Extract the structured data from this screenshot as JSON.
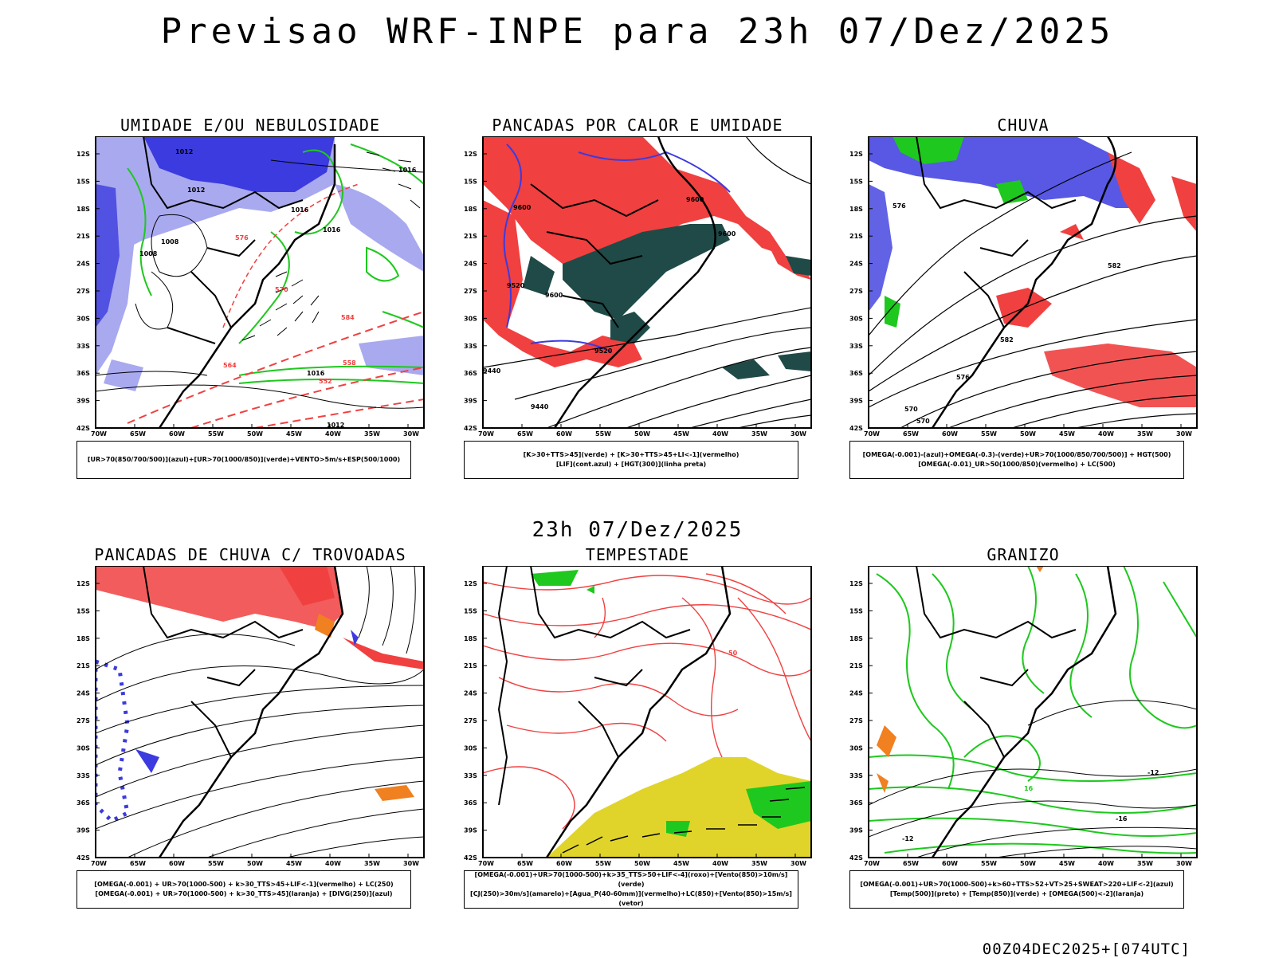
{
  "title": "Previsao WRF-INPE  para 23h 07/Dez/2025",
  "subtitle": "23h 07/Dez/2025",
  "footer": "00Z04DEC2025+[074UTC]",
  "axes": {
    "lat_labels": [
      "12S",
      "15S",
      "18S",
      "21S",
      "24S",
      "27S",
      "30S",
      "33S",
      "36S",
      "39S",
      "42S"
    ],
    "lon_labels": [
      "70W",
      "65W",
      "60W",
      "55W",
      "50W",
      "45W",
      "40W",
      "35W",
      "30W"
    ]
  },
  "panels": [
    {
      "title": "UMIDADE E/OU NEBULOSIDADE",
      "legend": [
        "[UR>70(850/700/500)](azul)+[UR>70(1000/850)](verde)+VENTO>5m/s+ESP(500/1000)"
      ],
      "contour_labels": [
        "1012",
        "1008",
        "1012",
        "1016",
        "1016",
        "1016",
        "1016",
        "1012",
        "1008",
        "584",
        "576",
        "570",
        "564",
        "558",
        "552"
      ]
    },
    {
      "title": "PANCADAS POR CALOR E UMIDADE",
      "legend": [
        "[K>30+TTS>45](verde) + [K>30+TTS>45+LI<-1](vermelho)",
        "[LIF](cont.azul) + [HGT(300)](linha preta)"
      ],
      "contour_labels": [
        "9600",
        "9600",
        "9600",
        "9520",
        "9600",
        "9520",
        "9440",
        "9440"
      ]
    },
    {
      "title": "CHUVA",
      "legend": [
        "[OMEGA(-0.001)-(azul)+OMEGA(-0.3)-(verde)+UR>70(1000/850/700/500)] + HGT(500)",
        "[OMEGA(-0.01)_UR>50(1000/850)(vermelho) + LC(500)"
      ],
      "contour_labels": [
        "582",
        "582",
        "576",
        "570",
        "576",
        "570"
      ]
    },
    {
      "title": "PANCADAS DE CHUVA C/ TROVOADAS",
      "legend": [
        "[OMEGA(-0.001) + UR>70(1000-500) + k>30_TTS>45+LIF<-1](vermelho) + LC(250)",
        "[OMEGA(-0.001) + UR>70(1000-500) + k>30_TTS>45](laranja) + [DIVG(250)](azul)"
      ],
      "contour_labels": []
    },
    {
      "title": "TEMPESTADE",
      "legend": [
        "[OMEGA(-0.001)+UR>70(1000-500)+k>35_TTS>50+LIF<-4](roxo)+[Vento(850)>10m/s](verde)",
        "[CJ(250)>30m/s](amarelo)+[Agua_P(40-60mm)](vermelho)+LC(850)+[Vento(850)>15m/s](vetor)"
      ],
      "contour_labels": [
        "50"
      ]
    },
    {
      "title": "GRANIZO",
      "legend": [
        "[OMEGA(-0.001)+UR>70(1000-500)+k>60+TTS>52+VT>25+SWEAT>220+LIF<-2](azul)",
        "[Temp(500)](preto) + [Temp(850)](verde) + [OMEGA(500)<-2](laranja)"
      ],
      "contour_labels": [
        "-12",
        "-12",
        "-16",
        "16"
      ]
    }
  ],
  "colors": {
    "humid_blue": "#3b3bdf",
    "humid_lilac": "#a9a9ef",
    "green": "#1ec81e",
    "red": "#f04040",
    "dark_teal": "#1f4a47",
    "yellow": "#e0d42a",
    "orange": "#f08020"
  }
}
